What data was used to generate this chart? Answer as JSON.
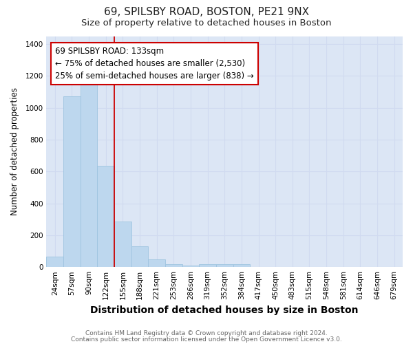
{
  "title1": "69, SPILSBY ROAD, BOSTON, PE21 9NX",
  "title2": "Size of property relative to detached houses in Boston",
  "xlabel": "Distribution of detached houses by size in Boston",
  "ylabel": "Number of detached properties",
  "categories": [
    "24sqm",
    "57sqm",
    "90sqm",
    "122sqm",
    "155sqm",
    "188sqm",
    "221sqm",
    "253sqm",
    "286sqm",
    "319sqm",
    "352sqm",
    "384sqm",
    "417sqm",
    "450sqm",
    "483sqm",
    "515sqm",
    "548sqm",
    "581sqm",
    "614sqm",
    "646sqm",
    "679sqm"
  ],
  "values": [
    65,
    1070,
    1160,
    635,
    285,
    130,
    50,
    20,
    10,
    20,
    20,
    20,
    0,
    0,
    0,
    0,
    0,
    0,
    0,
    0,
    0
  ],
  "bar_color": "#BDD7EE",
  "bar_edgecolor": "#9EC4E0",
  "red_line_index": 3,
  "annotation_box_text_line1": "69 SPILSBY ROAD: 133sqm",
  "annotation_box_text_line2": "← 75% of detached houses are smaller (2,530)",
  "annotation_box_text_line3": "25% of semi-detached houses are larger (838) →",
  "annotation_box_color": "#ffffff",
  "annotation_box_edgecolor": "#cc0000",
  "red_line_color": "#cc0000",
  "ylim": [
    0,
    1450
  ],
  "yticks": [
    0,
    200,
    400,
    600,
    800,
    1000,
    1200,
    1400
  ],
  "plot_bg_color": "#ffffff",
  "fig_bg_color": "#ffffff",
  "grid_color": "#d0daf0",
  "footer1": "Contains HM Land Registry data © Crown copyright and database right 2024.",
  "footer2": "Contains public sector information licensed under the Open Government Licence v3.0.",
  "title1_fontsize": 11,
  "title2_fontsize": 9.5,
  "xlabel_fontsize": 10,
  "ylabel_fontsize": 8.5,
  "tick_fontsize": 7.5,
  "footer_fontsize": 6.5,
  "annotation_fontsize": 8.5
}
